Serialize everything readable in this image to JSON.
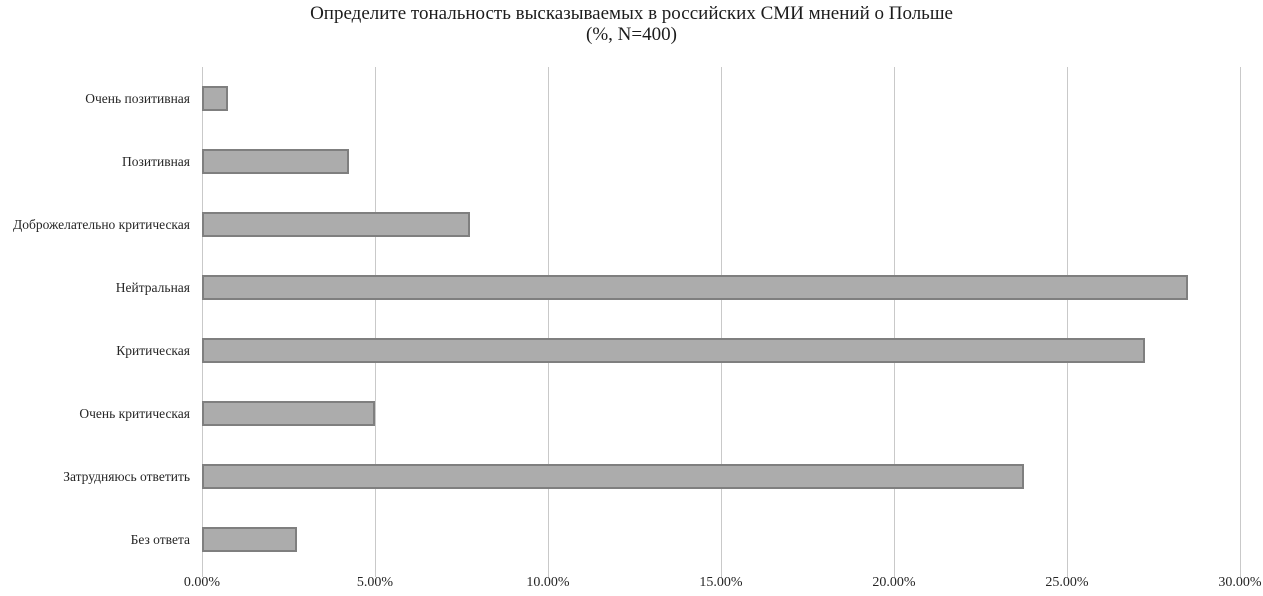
{
  "chart_data": {
    "type": "bar",
    "orientation": "horizontal",
    "title": "Определите тональность высказываемых в российских СМИ мнений о Польше (%, N=400)",
    "title_line1": "Определите тональность высказываемых в российских СМИ мнений о Польше",
    "title_line2": "(%, N=400)",
    "categories": [
      "Очень позитивная",
      "Позитивная",
      "Доброжелательно критическая",
      "Нейтральная",
      "Критическая",
      "Очень критическая",
      "Затрудняюсь ответить",
      "Без ответа"
    ],
    "values": [
      0.75,
      4.25,
      7.75,
      28.5,
      27.25,
      5.0,
      23.75,
      2.75
    ],
    "xlabel": "",
    "ylabel": "",
    "x_axis": {
      "min": 0,
      "max": 30,
      "step": 5,
      "tick_labels": [
        "0.00%",
        "5.00%",
        "10.00%",
        "15.00%",
        "20.00%",
        "25.00%",
        "30.00%"
      ]
    },
    "grid": true,
    "legend": false,
    "colors": {
      "bar_fill": "#acacac",
      "bar_border": "#7f7f7f",
      "gridline": "#c9c9c9",
      "text": "#262626",
      "background": "#ffffff"
    }
  }
}
